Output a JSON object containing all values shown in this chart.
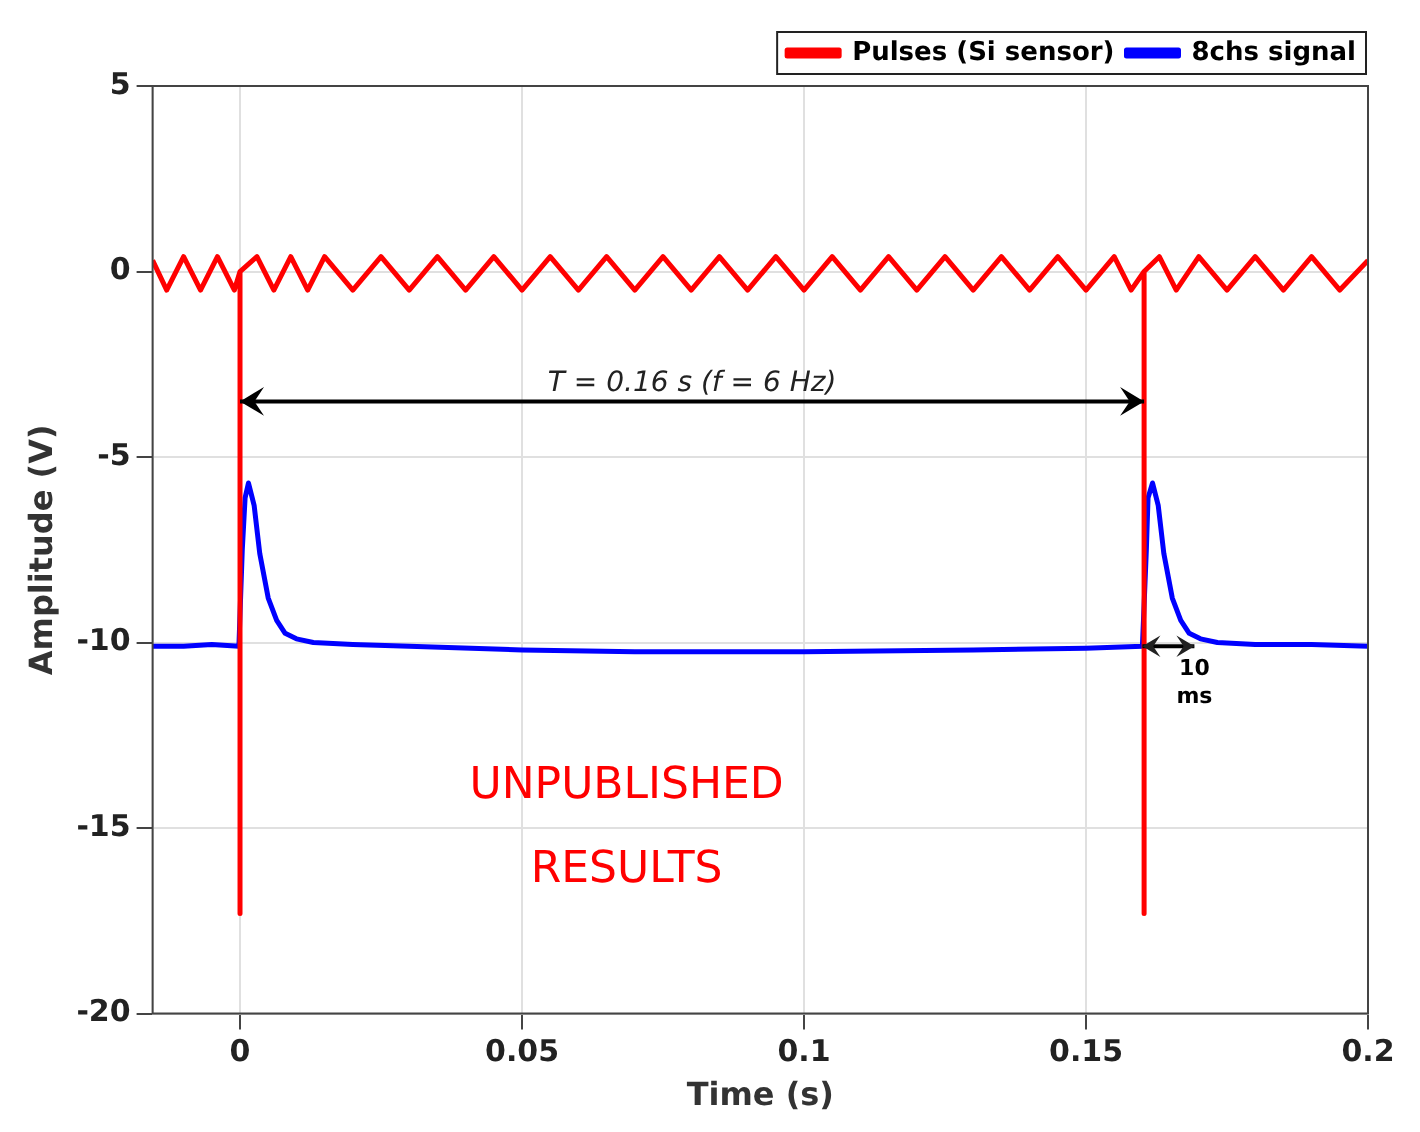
{
  "chart_data": {
    "type": "line",
    "xlabel": "Time (s)",
    "ylabel": "Amplitude (V)",
    "xlim": [
      -0.0155,
      0.2
    ],
    "xticks": [
      0,
      0.05,
      0.1,
      0.15,
      0.2
    ],
    "ylim": [
      -20,
      5
    ],
    "yticks": [
      -20,
      -15,
      -10,
      -5,
      0,
      5
    ],
    "grid": true,
    "legend": "top right",
    "marker": "none",
    "line_style": "solid",
    "annotations": [
      "T = 0.16 s (f = 6 Hz)",
      {
        "text": "10 ms",
        "x": 0.16,
        "y": -10.1
      },
      "UNPUBLISHED RESULTS"
    ],
    "series": [
      {
        "name": "Pulses (Si sensor)",
        "color": "#ff0000",
        "x": [
          -0.0155,
          -0.013,
          -0.01,
          -0.007,
          -0.004,
          -0.001,
          0,
          0,
          0,
          0.003,
          0.006,
          0.009,
          0.012,
          0.015,
          0.02,
          0.025,
          0.03,
          0.035,
          0.04,
          0.045,
          0.05,
          0.055,
          0.06,
          0.065,
          0.07,
          0.075,
          0.08,
          0.085,
          0.09,
          0.095,
          0.1,
          0.105,
          0.11,
          0.115,
          0.12,
          0.125,
          0.13,
          0.135,
          0.14,
          0.145,
          0.15,
          0.155,
          0.158,
          0.1603,
          0.1603,
          0.1603,
          0.163,
          0.166,
          0.17,
          0.175,
          0.18,
          0.185,
          0.19,
          0.195,
          0.2
        ],
        "values": [
          0.3,
          -0.5,
          0.4,
          -0.5,
          0.4,
          -0.5,
          0,
          -17.3,
          0,
          0.4,
          -0.5,
          0.4,
          -0.5,
          0.4,
          -0.5,
          0.4,
          -0.5,
          0.4,
          -0.5,
          0.4,
          -0.5,
          0.4,
          -0.5,
          0.4,
          -0.5,
          0.4,
          -0.5,
          0.4,
          -0.5,
          0.4,
          -0.5,
          0.4,
          -0.5,
          0.4,
          -0.5,
          0.4,
          -0.5,
          0.4,
          -0.5,
          0.4,
          -0.5,
          0.4,
          -0.5,
          0,
          -17.3,
          0,
          0.4,
          -0.5,
          0.4,
          -0.5,
          0.4,
          -0.5,
          0.4,
          -0.5,
          0.3
        ]
      },
      {
        "name": "8chs signal",
        "color": "#0000ff",
        "x": [
          -0.0155,
          -0.01,
          -0.005,
          -0.0002,
          0.0004,
          0.0009,
          0.0015,
          0.0025,
          0.0035,
          0.005,
          0.0065,
          0.008,
          0.01,
          0.013,
          0.02,
          0.03,
          0.05,
          0.07,
          0.1,
          0.13,
          0.15,
          0.16,
          0.1607,
          0.161,
          0.1618,
          0.1628,
          0.1638,
          0.1653,
          0.1668,
          0.1683,
          0.1703,
          0.1733,
          0.18,
          0.19,
          0.2
        ],
        "values": [
          -10.1,
          -10.1,
          -10.05,
          -10.1,
          -7.5,
          -6.1,
          -5.7,
          -6.3,
          -7.6,
          -8.8,
          -9.4,
          -9.75,
          -9.9,
          -10.0,
          -10.05,
          -10.1,
          -10.2,
          -10.25,
          -10.25,
          -10.2,
          -10.15,
          -10.1,
          -7.5,
          -6.1,
          -5.7,
          -6.3,
          -7.6,
          -8.8,
          -9.4,
          -9.75,
          -9.9,
          -10.0,
          -10.05,
          -10.05,
          -10.1
        ]
      }
    ]
  }
}
